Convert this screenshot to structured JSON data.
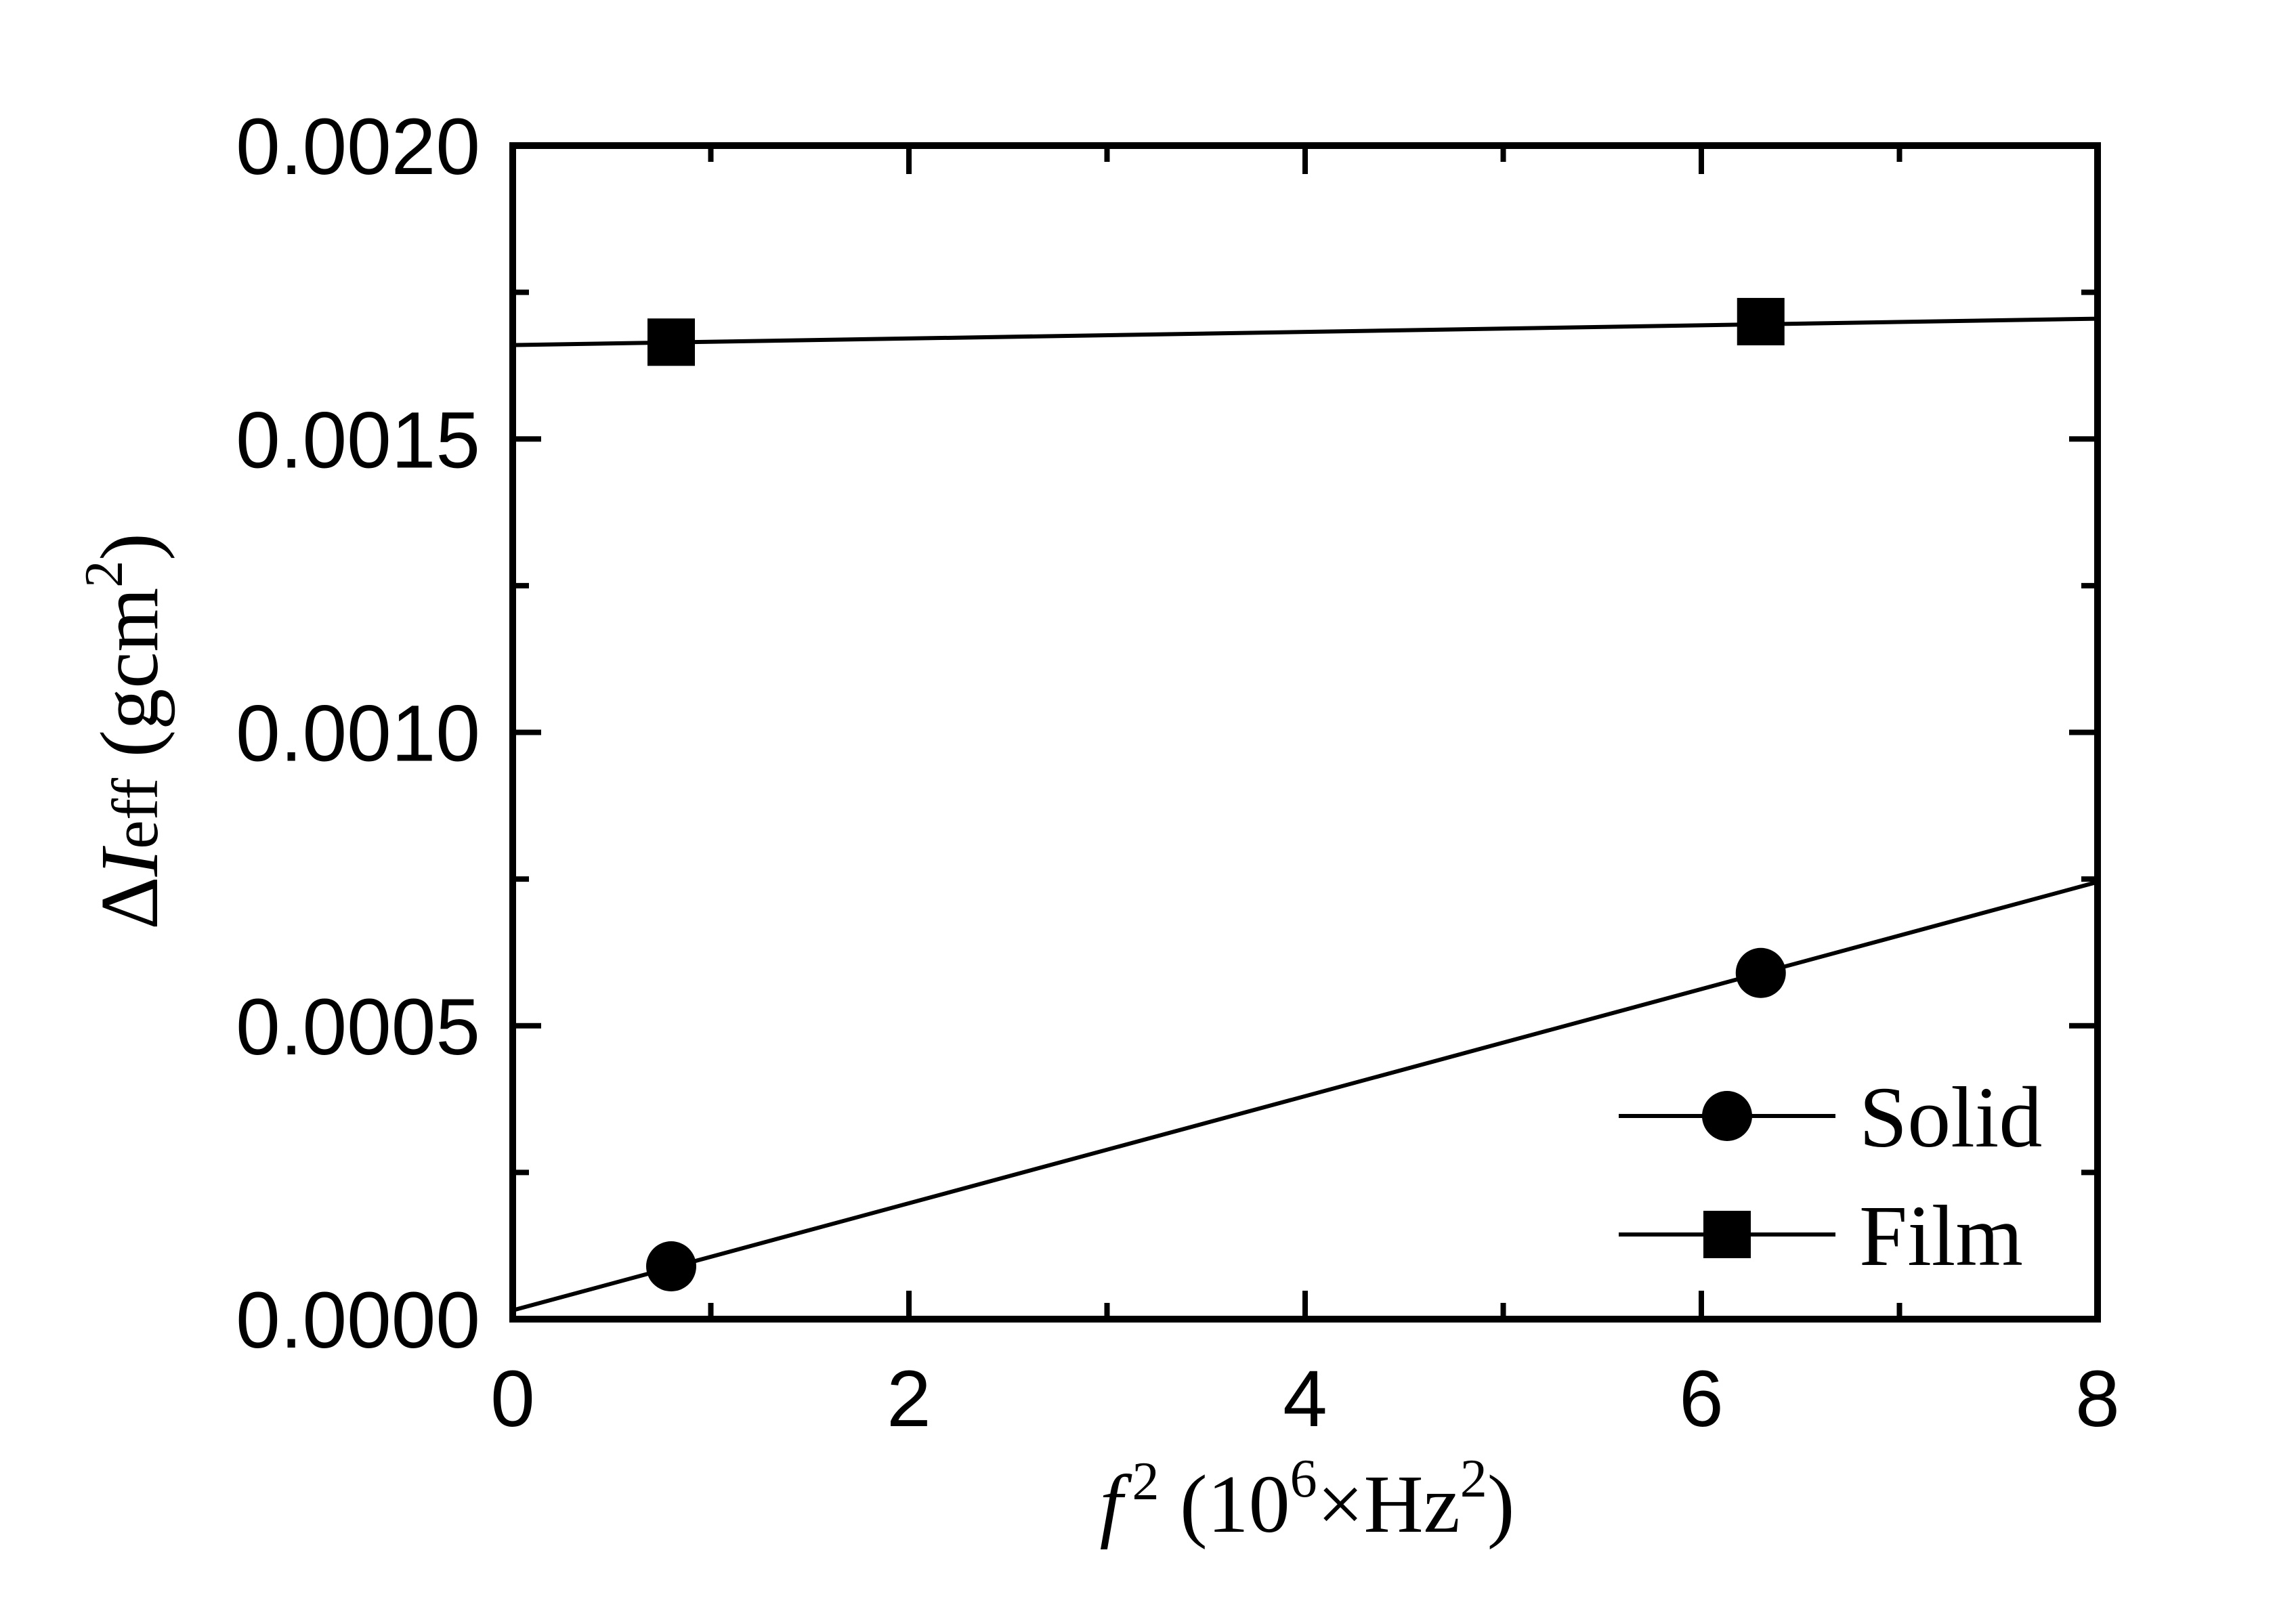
{
  "chart_data": {
    "type": "scatter",
    "xlabel": {
      "var": "f",
      "exp": "2",
      "open": " (10",
      "exp_unit": "6",
      "mid": "×Hz",
      "exp_hz": "2",
      "close": ")"
    },
    "ylabel": {
      "delta": "Δ",
      "var": "I",
      "sub": "eff",
      "open": " (gcm",
      "exp": "2",
      "close": ")"
    },
    "xlim": [
      0,
      8
    ],
    "ylim": [
      0,
      0.002
    ],
    "xticks": [
      "0",
      "2",
      "4",
      "6",
      "8"
    ],
    "yticks": [
      "0.0000",
      "0.0005",
      "0.0010",
      "0.0015",
      "0.0020"
    ],
    "grid": false,
    "legend_position": "bottom-right",
    "series": [
      {
        "name": "Solid",
        "marker": "circle",
        "points": [
          [
            0.8,
            9e-05
          ],
          [
            6.3,
            0.00059
          ]
        ],
        "fit_line": [
          [
            0,
            1.5e-05
          ],
          [
            8,
            0.000745
          ]
        ]
      },
      {
        "name": "Film",
        "marker": "square",
        "points": [
          [
            0.8,
            0.001665
          ],
          [
            6.3,
            0.0017
          ]
        ],
        "fit_line": [
          [
            0,
            0.00166
          ],
          [
            8,
            0.001705
          ]
        ]
      }
    ]
  }
}
